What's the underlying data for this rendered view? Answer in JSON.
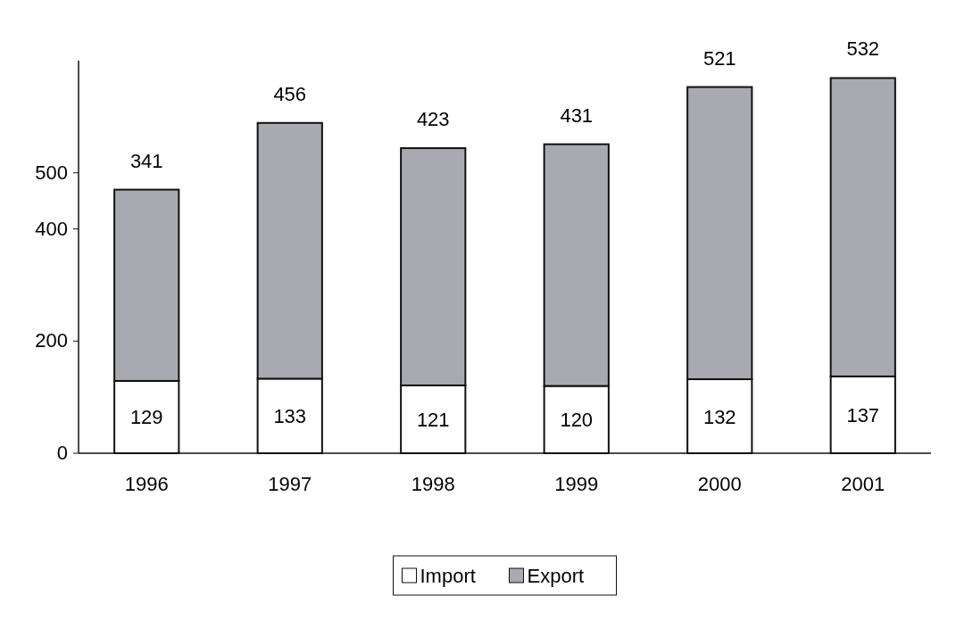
{
  "chart_data": {
    "type": "bar",
    "stacked": true,
    "categories": [
      "1996",
      "1997",
      "1998",
      "1999",
      "2000",
      "2001"
    ],
    "series": [
      {
        "name": "Import",
        "color": "#ffffff",
        "values": [
          129,
          133,
          121,
          120,
          132,
          137
        ]
      },
      {
        "name": "Export",
        "color": "#a9a9b1",
        "values": [
          341,
          456,
          423,
          431,
          521,
          532
        ]
      }
    ],
    "ylim": [
      0,
      700
    ],
    "yticks": [
      0,
      200,
      400,
      500
    ],
    "data_labels": true,
    "legend": "bottom",
    "grid": false
  }
}
